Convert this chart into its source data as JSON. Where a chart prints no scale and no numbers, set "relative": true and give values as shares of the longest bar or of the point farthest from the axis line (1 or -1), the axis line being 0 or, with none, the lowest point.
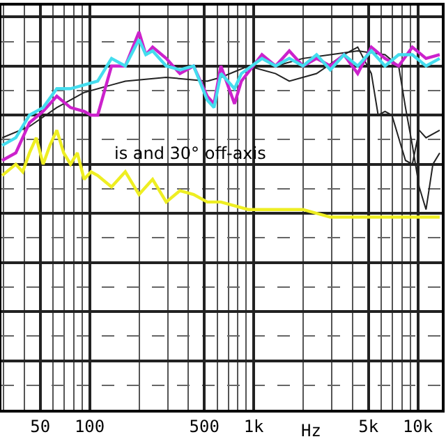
{
  "chart_data": {
    "type": "line",
    "relative": true,
    "xlabel": "Hz",
    "log": "x",
    "grid": true,
    "marker": "none",
    "line_style": "solid",
    "xlim": [
      29,
      14000
    ],
    "xticks": [
      {
        "value": 50,
        "label": "50"
      },
      {
        "value": 100,
        "label": "100"
      },
      {
        "value": 500,
        "label": "500"
      },
      {
        "value": 1000,
        "label": "1k"
      },
      {
        "value": 5000,
        "label": "5k"
      },
      {
        "value": 10000,
        "label": "10k"
      }
    ],
    "annotations": [
      "is and 30° off-axis"
    ],
    "series": [
      {
        "color": "#222222",
        "x": [
          29.3,
          43.0,
          63.1,
          92.6,
          136,
          165,
          293,
          521,
          631,
          926,
          1359,
          1647,
          2416,
          3548,
          4300,
          5210,
          5730,
          6310,
          6950,
          7640,
          8410,
          9260,
          10190,
          11220,
          13590
        ],
        "values": [
          0.72,
          0.75,
          0.8,
          0.84,
          0.86,
          0.87,
          0.88,
          0.87,
          0.88,
          0.91,
          0.89,
          0.87,
          0.89,
          0.94,
          0.96,
          0.89,
          0.78,
          0.79,
          0.78,
          0.72,
          0.66,
          0.65,
          0.74,
          0.72,
          0.74
        ]
      },
      {
        "color": "#222222",
        "x": [
          1359,
          1995,
          2929,
          4300,
          6310,
          7640,
          8410,
          9260,
          10190,
          11220,
          12350,
          13590
        ],
        "values": [
          0.91,
          0.93,
          0.94,
          0.95,
          0.94,
          0.91,
          0.8,
          0.7,
          0.59,
          0.53,
          0.65,
          0.68
        ]
      },
      {
        "color": "#cc22cc",
        "x": [
          29.3,
          35.5,
          43.0,
          52.1,
          63.1,
          76.5,
          92.6,
          102,
          112,
          136,
          165,
          200,
          220,
          242,
          293,
          355,
          430,
          521,
          573,
          631,
          764,
          841,
          1122,
          1359,
          1647,
          1995,
          2416,
          2929,
          3548,
          4300,
          5210,
          6310,
          7640,
          9260,
          11220,
          13590
        ],
        "values": [
          0.66,
          0.68,
          0.76,
          0.79,
          0.83,
          0.8,
          0.79,
          0.78,
          0.78,
          0.91,
          0.91,
          1.0,
          0.94,
          0.96,
          0.93,
          0.89,
          0.91,
          0.83,
          0.81,
          0.91,
          0.81,
          0.87,
          0.94,
          0.91,
          0.95,
          0.91,
          0.93,
          0.91,
          0.94,
          0.89,
          0.96,
          0.93,
          0.91,
          0.96,
          0.93,
          0.94
        ]
      },
      {
        "color": "#44ddee",
        "x": [
          29.3,
          35.5,
          43.0,
          52.1,
          63.1,
          76.5,
          92.6,
          112,
          136,
          165,
          200,
          220,
          242,
          293,
          355,
          430,
          521,
          573,
          631,
          764,
          841,
          1122,
          1359,
          1647,
          1995,
          2416,
          2929,
          3548,
          4300,
          5210,
          6310,
          7640,
          9260,
          11220,
          13590
        ],
        "values": [
          0.7,
          0.72,
          0.78,
          0.8,
          0.85,
          0.85,
          0.86,
          0.87,
          0.93,
          0.91,
          0.98,
          0.94,
          0.95,
          0.91,
          0.9,
          0.91,
          0.82,
          0.8,
          0.89,
          0.85,
          0.89,
          0.93,
          0.91,
          0.93,
          0.91,
          0.94,
          0.9,
          0.94,
          0.91,
          0.95,
          0.91,
          0.94,
          0.94,
          0.91,
          0.93
        ]
      },
      {
        "color": "#eeee22",
        "x": [
          29.3,
          35.5,
          39.1,
          43.0,
          47.3,
          52.1,
          57.3,
          63.1,
          69.5,
          76.5,
          84.1,
          92.6,
          102,
          112,
          136,
          165,
          200,
          242,
          293,
          355,
          430,
          521,
          631,
          926,
          1359,
          1995,
          2929,
          4300,
          6310,
          9260,
          13590
        ],
        "values": [
          0.62,
          0.65,
          0.63,
          0.68,
          0.72,
          0.65,
          0.7,
          0.74,
          0.68,
          0.65,
          0.68,
          0.61,
          0.63,
          0.62,
          0.59,
          0.63,
          0.57,
          0.61,
          0.55,
          0.58,
          0.57,
          0.55,
          0.55,
          0.53,
          0.53,
          0.53,
          0.51,
          0.51,
          0.51,
          0.51,
          0.51
        ]
      }
    ]
  }
}
